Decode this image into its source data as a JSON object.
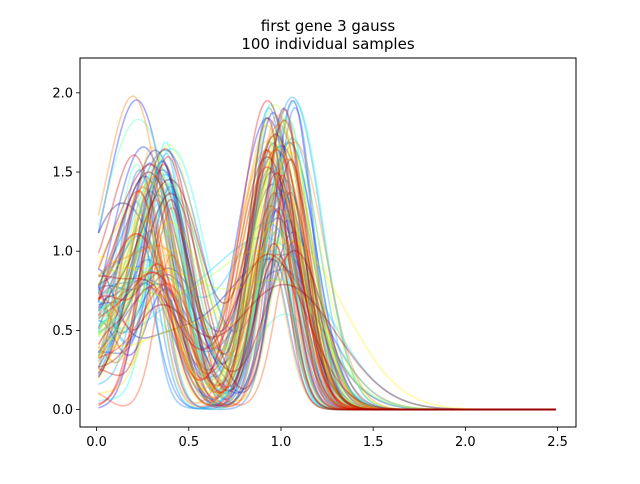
{
  "chart_data": {
    "type": "line",
    "title": "first gene 3 gauss",
    "subtitle": "100 individual samples",
    "xlabel": "",
    "ylabel": "",
    "xlim": [
      -0.09,
      2.6
    ],
    "ylim": [
      -0.11,
      2.22
    ],
    "xticks": [
      0.0,
      0.5,
      1.0,
      1.5,
      2.0,
      2.5
    ],
    "xtick_labels": [
      "0.0",
      "0.5",
      "1.0",
      "1.5",
      "2.0",
      "2.5"
    ],
    "yticks": [
      0.0,
      0.5,
      1.0,
      1.5,
      2.0
    ],
    "ytick_labels": [
      "0.0",
      "0.5",
      "1.0",
      "1.5",
      "2.0"
    ],
    "x_range": [
      0.01,
      2.49
    ],
    "n_samples": 100,
    "colormap": "jet",
    "line_alpha": 0.35,
    "grid": false,
    "legend": "none",
    "series_summary": {
      "peak1_x": [
        0.22,
        0.42
      ],
      "peak1_height": [
        0.75,
        1.85
      ],
      "peak2_x": [
        0.92,
        1.08
      ],
      "peak2_height": [
        0.95,
        2.1
      ],
      "baseline_at_x0": [
        0.0,
        1.15
      ],
      "value_beyond_1.6": 0.0
    }
  }
}
